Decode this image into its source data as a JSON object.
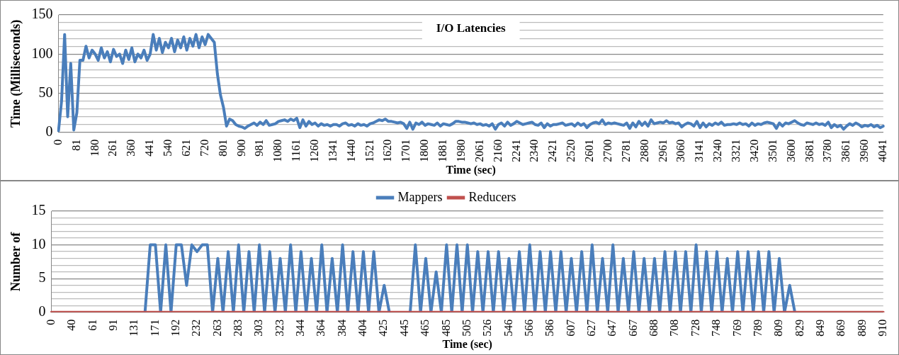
{
  "chart_data": [
    {
      "type": "line",
      "title": "I/O Latencies",
      "xlabel": "Time (sec)",
      "ylabel": "Time (Milliseconds)",
      "grid": "y",
      "legend": false,
      "marker": "none",
      "line_style": "solid",
      "ylim": [
        0,
        150
      ],
      "yticks": [
        0,
        {
          "value": 10,
          "label": null
        },
        {
          "value": 20,
          "label": null
        },
        {
          "value": 30,
          "label": null
        },
        {
          "value": 40,
          "label": null
        },
        50,
        {
          "value": 60,
          "label": null
        },
        {
          "value": 70,
          "label": null
        },
        {
          "value": 80,
          "label": null
        },
        {
          "value": 90,
          "label": null
        },
        100,
        {
          "value": 110,
          "label": null
        },
        {
          "value": 120,
          "label": null
        },
        {
          "value": 130,
          "label": null
        },
        {
          "value": 140,
          "label": null
        },
        150
      ],
      "categories": [
        "0",
        null,
        null,
        null,
        null,
        null,
        "81",
        null,
        null,
        null,
        null,
        null,
        "180",
        null,
        null,
        null,
        null,
        null,
        "261",
        null,
        null,
        null,
        null,
        null,
        "360",
        null,
        null,
        null,
        null,
        null,
        "441",
        null,
        null,
        null,
        null,
        null,
        "540",
        null,
        null,
        null,
        null,
        null,
        "621",
        null,
        null,
        null,
        null,
        null,
        "720",
        null,
        null,
        null,
        null,
        null,
        "801",
        null,
        null,
        null,
        null,
        null,
        "900",
        null,
        null,
        null,
        null,
        null,
        "981",
        null,
        null,
        null,
        null,
        null,
        "1080",
        null,
        null,
        null,
        null,
        null,
        "1161",
        null,
        null,
        null,
        null,
        null,
        "1260",
        null,
        null,
        null,
        null,
        null,
        "1341",
        null,
        null,
        null,
        null,
        null,
        "1440",
        null,
        null,
        null,
        null,
        null,
        "1521",
        null,
        null,
        null,
        null,
        null,
        "1620",
        null,
        null,
        null,
        null,
        null,
        "1701",
        null,
        null,
        null,
        null,
        null,
        "1800",
        null,
        null,
        null,
        null,
        null,
        "1881",
        null,
        null,
        null,
        null,
        null,
        "1980",
        null,
        null,
        null,
        null,
        null,
        "2061",
        null,
        null,
        null,
        null,
        null,
        "2160",
        null,
        null,
        null,
        null,
        null,
        "2241",
        null,
        null,
        null,
        null,
        null,
        "2340",
        null,
        null,
        null,
        null,
        null,
        "2421",
        null,
        null,
        null,
        null,
        null,
        "2520",
        null,
        null,
        null,
        null,
        null,
        "2601",
        null,
        null,
        null,
        null,
        null,
        "2700",
        null,
        null,
        null,
        null,
        null,
        "2781",
        null,
        null,
        null,
        null,
        null,
        "2880",
        null,
        null,
        null,
        null,
        null,
        "2961",
        null,
        null,
        null,
        null,
        null,
        "3060",
        null,
        null,
        null,
        null,
        null,
        "3141",
        null,
        null,
        null,
        null,
        null,
        "3240",
        null,
        null,
        null,
        null,
        null,
        "3321",
        null,
        null,
        null,
        null,
        null,
        "3420",
        null,
        null,
        null,
        null,
        null,
        "3501",
        null,
        null,
        null,
        null,
        null,
        "3600",
        null,
        null,
        null,
        null,
        null,
        "3681",
        null,
        null,
        null,
        null,
        null,
        "3780",
        null,
        null,
        null,
        null,
        null,
        "3861",
        null,
        null,
        null,
        null,
        null,
        "3960",
        null,
        null,
        null,
        null,
        null,
        "4041"
      ],
      "series": [
        {
          "color": "#4a7ebb",
          "values": [
            2,
            40,
            125,
            20,
            88,
            3,
            25,
            92,
            92,
            110,
            95,
            105,
            100,
            92,
            108,
            95,
            103,
            90,
            106,
            97,
            100,
            88,
            105,
            93,
            108,
            90,
            100,
            95,
            105,
            92,
            100,
            125,
            105,
            120,
            102,
            115,
            108,
            120,
            103,
            118,
            108,
            122,
            105,
            120,
            110,
            125,
            108,
            122,
            112,
            125,
            120,
            115,
            75,
            48,
            32,
            8,
            17,
            15,
            10,
            8,
            7,
            5,
            8,
            10,
            12,
            9,
            13,
            10,
            15,
            9,
            10,
            11,
            14,
            15,
            16,
            14,
            17,
            15,
            18,
            6,
            16,
            8,
            14,
            10,
            12,
            8,
            11,
            9,
            10,
            8,
            10,
            10,
            8,
            11,
            12,
            9,
            10,
            8,
            11,
            9,
            10,
            8,
            11,
            12,
            14,
            16,
            15,
            17,
            14,
            14,
            13,
            12,
            13,
            11,
            5,
            13,
            4,
            12,
            10,
            13,
            9,
            11,
            10,
            9,
            12,
            8,
            11,
            10,
            9,
            11,
            14,
            14,
            13,
            13,
            12,
            11,
            12,
            10,
            11,
            9,
            10,
            8,
            11,
            4,
            10,
            12,
            8,
            13,
            9,
            11,
            14,
            12,
            10,
            11,
            12,
            13,
            10,
            9,
            12,
            6,
            11,
            8,
            10,
            10,
            11,
            12,
            9,
            10,
            11,
            8,
            12,
            9,
            11,
            6,
            10,
            12,
            13,
            11,
            16,
            10,
            12,
            11,
            12,
            11,
            10,
            9,
            12,
            5,
            12,
            7,
            14,
            9,
            13,
            8,
            16,
            11,
            12,
            13,
            12,
            15,
            12,
            13,
            11,
            12,
            7,
            10,
            12,
            11,
            8,
            14,
            6,
            12,
            7,
            11,
            9,
            12,
            10,
            13,
            9,
            10,
            10,
            11,
            10,
            12,
            10,
            11,
            8,
            12,
            9,
            11,
            10,
            12,
            13,
            12,
            11,
            5,
            12,
            8,
            12,
            11,
            13,
            15,
            12,
            10,
            9,
            12,
            11,
            10,
            12,
            10,
            11,
            9,
            13,
            6,
            10,
            7,
            9,
            4,
            8,
            11,
            9,
            12,
            10,
            7,
            9,
            8,
            10,
            7,
            9,
            6,
            8
          ]
        }
      ]
    },
    {
      "type": "line",
      "xlabel": "Time (sec)",
      "ylabel": "Number of",
      "grid": "y",
      "legend": "top",
      "marker": "none",
      "line_style": "solid",
      "ylim": [
        0,
        15
      ],
      "yticks": [
        0,
        {
          "value": 1,
          "label": null
        },
        {
          "value": 2,
          "label": null
        },
        {
          "value": 3,
          "label": null
        },
        {
          "value": 4,
          "label": null
        },
        5,
        {
          "value": 6,
          "label": null
        },
        {
          "value": 7,
          "label": null
        },
        {
          "value": 8,
          "label": null
        },
        {
          "value": 9,
          "label": null
        },
        10,
        {
          "value": 11,
          "label": null
        },
        {
          "value": 12,
          "label": null
        },
        {
          "value": 13,
          "label": null
        },
        {
          "value": 14,
          "label": null
        },
        15
      ],
      "categories": [
        "0",
        null,
        null,
        null,
        "40",
        null,
        null,
        null,
        "61",
        null,
        null,
        null,
        "91",
        null,
        null,
        null,
        "131",
        null,
        null,
        null,
        "171",
        null,
        null,
        null,
        "192",
        null,
        null,
        null,
        "232",
        null,
        null,
        null,
        "263",
        null,
        null,
        null,
        "283",
        null,
        null,
        null,
        "303",
        null,
        null,
        null,
        "323",
        null,
        null,
        null,
        "344",
        null,
        null,
        null,
        "364",
        null,
        null,
        null,
        "384",
        null,
        null,
        null,
        "404",
        null,
        null,
        null,
        "425",
        null,
        null,
        null,
        "445",
        null,
        null,
        null,
        "465",
        null,
        null,
        null,
        "485",
        null,
        null,
        null,
        "505",
        null,
        null,
        null,
        "526",
        null,
        null,
        null,
        "546",
        null,
        null,
        null,
        "566",
        null,
        null,
        null,
        "586",
        null,
        null,
        null,
        "607",
        null,
        null,
        null,
        "627",
        null,
        null,
        null,
        "647",
        null,
        null,
        null,
        "667",
        null,
        null,
        null,
        "688",
        null,
        null,
        null,
        "708",
        null,
        null,
        null,
        "728",
        null,
        null,
        null,
        "748",
        null,
        null,
        null,
        "769",
        null,
        null,
        null,
        "789",
        null,
        null,
        null,
        "809",
        null,
        null,
        null,
        "829",
        null,
        null,
        null,
        "849",
        null,
        null,
        null,
        "869",
        null,
        null,
        null,
        "889",
        null,
        null,
        null,
        "910"
      ],
      "series": [
        {
          "name": "Mappers",
          "color": "#4a7ebb",
          "values": [
            null,
            null,
            null,
            null,
            null,
            null,
            null,
            null,
            null,
            null,
            null,
            null,
            null,
            null,
            null,
            null,
            null,
            null,
            0,
            10,
            10,
            0,
            10,
            0,
            10,
            10,
            4,
            10,
            9,
            10,
            10,
            0,
            8,
            0,
            9,
            0,
            10,
            0,
            9,
            0,
            10,
            0,
            9,
            0,
            8,
            0,
            10,
            0,
            9,
            0,
            8,
            0,
            10,
            0,
            8,
            0,
            10,
            0,
            9,
            0,
            9,
            0,
            9,
            0,
            4,
            0,
            null,
            null,
            null,
            0,
            10,
            0,
            8,
            0,
            6,
            0,
            10,
            0,
            10,
            0,
            10,
            0,
            9,
            0,
            9,
            0,
            9,
            0,
            8,
            0,
            9,
            0,
            10,
            0,
            9,
            0,
            9,
            0,
            9,
            0,
            8,
            0,
            9,
            0,
            10,
            0,
            8,
            0,
            10,
            0,
            8,
            0,
            9,
            0,
            8,
            0,
            8,
            0,
            9,
            0,
            9,
            0,
            9,
            0,
            10,
            0,
            9,
            0,
            9,
            0,
            8,
            0,
            9,
            0,
            9,
            0,
            9,
            0,
            9,
            0,
            8,
            0,
            4,
            0,
            null,
            null,
            null,
            null,
            null,
            null,
            null,
            null,
            null,
            null,
            null,
            null,
            null,
            null,
            null,
            null,
            null
          ]
        },
        {
          "name": "Reducers",
          "color": "#c0504d",
          "values": [
            0,
            0,
            0,
            0,
            0,
            0,
            0,
            0,
            0,
            0,
            0,
            0,
            0,
            0,
            0,
            0,
            0,
            0,
            0,
            0,
            0,
            0,
            0,
            0,
            0,
            0,
            0,
            0,
            0,
            0,
            0,
            0,
            0,
            0,
            0,
            0,
            0,
            0,
            0,
            0,
            0,
            0,
            0,
            0,
            0,
            0,
            0,
            0,
            0,
            0,
            0,
            0,
            0,
            0,
            0,
            0,
            0,
            0,
            0,
            0,
            0,
            0,
            0,
            0,
            0,
            0,
            0,
            0,
            0,
            0,
            0,
            0,
            0,
            0,
            0,
            0,
            0,
            0,
            0,
            0,
            0,
            0,
            0,
            0,
            0,
            0,
            0,
            0,
            0,
            0,
            0,
            0,
            0,
            0,
            0,
            0,
            0,
            0,
            0,
            0,
            0,
            0,
            0,
            0,
            0,
            0,
            0,
            0,
            0,
            0,
            0,
            0,
            0,
            0,
            0,
            0,
            0,
            0,
            0,
            0,
            0,
            0,
            0,
            0,
            0,
            0,
            0,
            0,
            0,
            0,
            0,
            0,
            0,
            0,
            0,
            0,
            0,
            0,
            0,
            0,
            0,
            0,
            0,
            0,
            0,
            0,
            0,
            0,
            0,
            0,
            0,
            0,
            0,
            0,
            0,
            0,
            0,
            0,
            0,
            0,
            0
          ]
        }
      ]
    }
  ]
}
